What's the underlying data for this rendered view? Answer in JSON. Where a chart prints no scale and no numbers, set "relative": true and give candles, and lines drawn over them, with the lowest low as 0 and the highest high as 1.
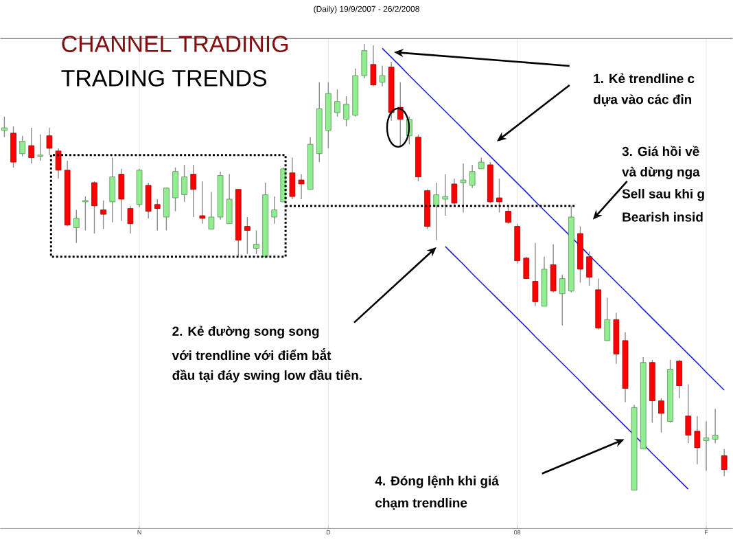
{
  "chart_data": {
    "type": "candlestick",
    "relative": true,
    "title": "CHANNEL TRADINIG",
    "subtitle": "TRADING TRENDS",
    "annotations": [
      "(Daily)  19/9/2007 - 26/2/2008",
      "1. Kẻ trendline c",
      "dựa vào các đỉn",
      "3. Giá hồi về",
      "và dừng nga",
      "Sell sau khi g",
      "Bearish insid",
      "2. Kẻ đường song song",
      "với trendline với điểm bắt",
      "đầu tại đáy swing low đầu tiên.",
      "4. Đóng lệnh khi giá",
      "chạm trendline"
    ],
    "categories": [
      null,
      null,
      null,
      null,
      null,
      null,
      null,
      null,
      null,
      null,
      null,
      null,
      null,
      null,
      null,
      "N",
      null,
      null,
      null,
      null,
      null,
      null,
      null,
      null,
      null,
      null,
      null,
      null,
      null,
      null,
      null,
      null,
      null,
      null,
      null,
      null,
      "D",
      null,
      null,
      null,
      null,
      null,
      null,
      null,
      null,
      null,
      null,
      null,
      null,
      null,
      null,
      null,
      null,
      null,
      null,
      null,
      null,
      "08",
      null,
      null,
      null,
      null,
      null,
      null,
      null,
      null,
      null,
      null,
      null,
      null,
      null,
      null,
      null,
      null,
      null,
      null,
      null,
      null,
      "F",
      null,
      null
    ],
    "grid": "x",
    "ref_lines": [
      {
        "axis": "y",
        "value": 0.637,
        "color": "#000000",
        "line_style": "dotted"
      }
    ],
    "ohlc": [
      [
        0.806,
        0.837,
        0.791,
        0.812
      ],
      [
        0.8,
        0.815,
        0.723,
        0.735
      ],
      [
        0.754,
        0.794,
        0.748,
        0.782
      ],
      [
        0.772,
        0.812,
        0.732,
        0.745
      ],
      [
        0.748,
        0.797,
        0.738,
        0.751
      ],
      [
        0.794,
        0.812,
        0.751,
        0.766
      ],
      [
        0.76,
        0.766,
        0.698,
        0.717
      ],
      [
        0.717,
        0.738,
        0.591,
        0.594
      ],
      [
        0.588,
        0.628,
        0.554,
        0.609
      ],
      [
        0.646,
        0.658,
        0.582,
        0.649
      ],
      [
        0.689,
        0.692,
        0.575,
        0.637
      ],
      [
        0.628,
        0.649,
        0.585,
        0.618
      ],
      [
        0.646,
        0.745,
        0.6,
        0.702
      ],
      [
        0.708,
        0.72,
        0.603,
        0.652
      ],
      [
        0.631,
        0.637,
        0.575,
        0.597
      ],
      [
        0.64,
        0.72,
        0.634,
        0.717
      ],
      [
        0.683,
        0.689,
        0.609,
        0.625
      ],
      [
        0.64,
        0.652,
        0.582,
        0.631
      ],
      [
        0.612,
        0.677,
        0.582,
        0.677
      ],
      [
        0.655,
        0.723,
        0.625,
        0.714
      ],
      [
        0.662,
        0.729,
        0.646,
        0.702
      ],
      [
        0.708,
        0.729,
        0.612,
        0.674
      ],
      [
        0.615,
        0.692,
        0.597,
        0.609
      ],
      [
        0.585,
        0.668,
        0.585,
        0.612
      ],
      [
        0.612,
        0.714,
        0.606,
        0.705
      ],
      [
        0.597,
        0.708,
        0.597,
        0.652
      ],
      [
        0.674,
        0.674,
        0.523,
        0.56
      ],
      [
        0.591,
        0.612,
        0.529,
        0.582
      ],
      [
        0.542,
        0.582,
        0.529,
        0.551
      ],
      [
        0.523,
        0.689,
        0.52,
        0.662
      ],
      [
        0.612,
        0.658,
        0.597,
        0.628
      ],
      [
        0.646,
        0.723,
        0.646,
        0.72
      ],
      [
        0.711,
        0.745,
        0.652,
        0.658
      ],
      [
        0.695,
        0.708,
        0.652,
        0.686
      ],
      [
        0.674,
        0.791,
        0.674,
        0.775
      ],
      [
        0.754,
        0.914,
        0.735,
        0.855
      ],
      [
        0.806,
        0.914,
        0.766,
        0.889
      ],
      [
        0.846,
        0.898,
        0.837,
        0.871
      ],
      [
        0.831,
        0.883,
        0.815,
        0.865
      ],
      [
        0.84,
        0.945,
        0.837,
        0.929
      ],
      [
        0.929,
        1.0,
        0.923,
        0.985
      ],
      [
        0.954,
        0.997,
        0.905,
        0.908
      ],
      [
        0.914,
        0.951,
        0.905,
        0.929
      ],
      [
        0.948,
        0.96,
        0.828,
        0.846
      ],
      [
        0.858,
        0.914,
        0.769,
        0.831
      ],
      [
        0.794,
        0.837,
        0.775,
        0.831
      ],
      [
        0.791,
        0.797,
        0.692,
        0.702
      ],
      [
        0.671,
        0.674,
        0.585,
        0.591
      ],
      [
        0.637,
        0.689,
        0.56,
        0.662
      ],
      [
        0.652,
        0.708,
        0.615,
        0.658
      ],
      [
        0.686,
        0.698,
        0.637,
        0.643
      ],
      [
        0.689,
        0.732,
        0.622,
        0.695
      ],
      [
        0.683,
        0.729,
        0.677,
        0.714
      ],
      [
        0.72,
        0.745,
        0.72,
        0.735
      ],
      [
        0.729,
        0.735,
        0.643,
        0.646
      ],
      [
        0.655,
        0.698,
        0.622,
        0.646
      ],
      [
        0.625,
        0.637,
        0.597,
        0.6
      ],
      [
        0.591,
        0.597,
        0.508,
        0.514
      ],
      [
        0.52,
        0.523,
        0.474,
        0.474
      ],
      [
        0.468,
        0.554,
        0.412,
        0.422
      ],
      [
        0.412,
        0.523,
        0.412,
        0.495
      ],
      [
        0.505,
        0.551,
        0.443,
        0.446
      ],
      [
        0.44,
        0.483,
        0.369,
        0.474
      ],
      [
        0.446,
        0.637,
        0.443,
        0.612
      ],
      [
        0.575,
        0.591,
        0.465,
        0.495
      ],
      [
        0.523,
        0.535,
        0.458,
        0.477
      ],
      [
        0.449,
        0.474,
        0.36,
        0.363
      ],
      [
        0.335,
        0.431,
        0.335,
        0.382
      ],
      [
        0.382,
        0.397,
        0.283,
        0.305
      ],
      [
        0.335,
        0.354,
        0.197,
        0.228
      ],
      [
        0.0,
        0.191,
        0.0,
        0.185
      ],
      [
        0.092,
        0.298,
        0.092,
        0.286
      ],
      [
        0.286,
        0.292,
        0.151,
        0.2
      ],
      [
        0.2,
        0.206,
        0.129,
        0.172
      ],
      [
        0.154,
        0.292,
        0.151,
        0.271
      ],
      [
        0.289,
        0.292,
        0.206,
        0.234
      ],
      [
        0.166,
        0.237,
        0.105,
        0.123
      ],
      [
        0.132,
        0.166,
        0.058,
        0.095
      ],
      [
        0.111,
        0.154,
        0.043,
        0.117
      ],
      [
        0.114,
        0.182,
        0.105,
        0.123
      ],
      [
        0.077,
        0.092,
        0.031,
        0.046
      ]
    ],
    "colors": [
      "#90ee90",
      "#ff0000",
      "#90ee90",
      "#ff0000",
      "#90ee90",
      "#ff0000",
      "#ff0000",
      "#ff0000",
      "#90ee90",
      "#90ee90",
      "#ff0000",
      "#ff0000",
      "#90ee90",
      "#ff0000",
      "#ff0000",
      "#90ee90",
      "#ff0000",
      "#ff0000",
      "#90ee90",
      "#90ee90",
      "#90ee90",
      "#ff0000",
      "#ff0000",
      "#90ee90",
      "#90ee90",
      "#90ee90",
      "#ff0000",
      "#ff0000",
      "#90ee90",
      "#90ee90",
      "#90ee90",
      "#90ee90",
      "#ff0000",
      "#ff0000",
      "#90ee90",
      "#90ee90",
      "#90ee90",
      "#90ee90",
      "#90ee90",
      "#90ee90",
      "#90ee90",
      "#ff0000",
      "#90ee90",
      "#ff0000",
      "#ff0000",
      "#90ee90",
      "#ff0000",
      "#ff0000",
      "#90ee90",
      "#90ee90",
      "#ff0000",
      "#90ee90",
      "#90ee90",
      "#90ee90",
      "#ff0000",
      "#ff0000",
      "#ff0000",
      "#ff0000",
      "#ff0000",
      "#ff0000",
      "#90ee90",
      "#ff0000",
      "#90ee90",
      "#90ee90",
      "#ff0000",
      "#ff0000",
      "#ff0000",
      "#90ee90",
      "#ff0000",
      "#ff0000",
      "#90ee90",
      "#90ee90",
      "#ff0000",
      "#ff0000",
      "#90ee90",
      "#ff0000",
      "#ff0000",
      "#ff0000",
      "#90ee90",
      "#90ee90",
      "#ff0000"
    ],
    "series": [
      {
        "type": "line",
        "color": "#2020e0",
        "values": [
          null,
          null,
          null,
          null,
          null,
          null,
          null,
          null,
          null,
          null,
          null,
          null,
          null,
          null,
          null,
          null,
          null,
          null,
          null,
          null,
          null,
          null,
          null,
          null,
          null,
          null,
          null,
          null,
          null,
          null,
          null,
          null,
          null,
          null,
          null,
          null,
          null,
          null,
          null,
          null,
          null,
          null,
          0.99,
          0.97,
          0.95,
          0.929,
          0.909,
          0.889,
          0.869,
          0.849,
          0.829,
          0.809,
          0.788,
          0.768,
          0.748,
          0.728,
          0.708,
          0.688,
          0.668,
          0.647,
          0.627,
          0.607,
          0.587,
          0.567,
          0.547,
          0.526,
          0.506,
          0.486,
          0.466,
          0.446,
          0.426,
          0.405,
          0.385,
          0.365,
          0.345,
          0.325,
          0.305,
          0.285,
          0.264,
          0.244,
          0.224
        ]
      },
      {
        "type": "line",
        "color": "#2020e0",
        "values": [
          null,
          null,
          null,
          null,
          null,
          null,
          null,
          null,
          null,
          null,
          null,
          null,
          null,
          null,
          null,
          null,
          null,
          null,
          null,
          null,
          null,
          null,
          null,
          null,
          null,
          null,
          null,
          null,
          null,
          null,
          null,
          null,
          null,
          null,
          null,
          null,
          null,
          null,
          null,
          null,
          null,
          null,
          null,
          null,
          null,
          null,
          null,
          null,
          null,
          0.546,
          0.526,
          0.506,
          0.485,
          0.465,
          0.445,
          0.425,
          0.405,
          0.385,
          0.365,
          0.344,
          0.324,
          0.304,
          0.284,
          0.264,
          0.244,
          0.223,
          0.203,
          0.183,
          0.163,
          0.143,
          0.123,
          0.103,
          0.082,
          0.062,
          0.042,
          0.022,
          0.002,
          null,
          null,
          null,
          null
        ]
      }
    ]
  }
}
